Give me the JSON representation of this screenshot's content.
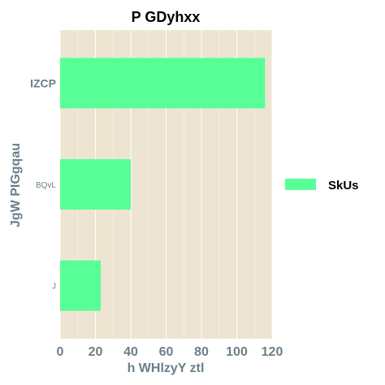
{
  "chart_data": {
    "type": "bar",
    "orientation": "horizontal",
    "title": "P GDyhxx",
    "xlabel": "h WHlzyY ztl",
    "ylabel": "JgW PIGgqau",
    "categories": [
      "IZCP",
      "BQvL",
      "J"
    ],
    "series": [
      {
        "name": "SkUs",
        "values": [
          116,
          40,
          23
        ]
      }
    ],
    "xlim": [
      0,
      120
    ],
    "xticks": [
      "0",
      "20",
      "40",
      "60",
      "80",
      "100",
      "120"
    ],
    "grid": true,
    "legend_position": "right",
    "colors": {
      "bar": "#57ff96",
      "plot_bg": "#ede5d2",
      "grid": "#ffffff",
      "axis_text": "#6b7f88"
    }
  }
}
